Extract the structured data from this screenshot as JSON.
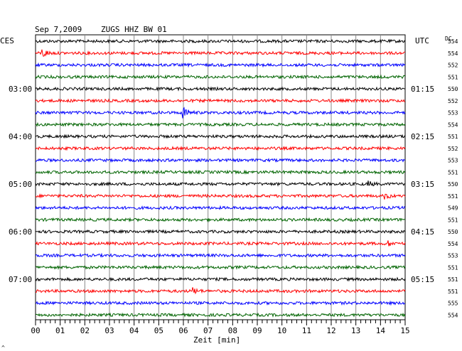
{
  "header": {
    "date": "Sep 7,2009",
    "station": "ZUGS HHZ BW 01"
  },
  "left_zone": "CES",
  "right_zone": "UTC",
  "dc_header": "DC",
  "corner_mark": "^",
  "chart_data": {
    "type": "line",
    "title": "Sep 7,2009  ZUGS HHZ BW 01",
    "xlabel": "Zeit [min]",
    "xlim": [
      0,
      15
    ],
    "x_ticks": [
      "00",
      "01",
      "02",
      "03",
      "04",
      "05",
      "06",
      "07",
      "08",
      "09",
      "10",
      "11",
      "12",
      "13",
      "14",
      "15"
    ],
    "trace_count": 24,
    "trace_colors": [
      "#000000",
      "#ff0000",
      "#0000ff",
      "#006400"
    ],
    "grid": true,
    "left_time_labels": [
      {
        "trace": 4,
        "text": "03:00"
      },
      {
        "trace": 8,
        "text": "04:00"
      },
      {
        "trace": 12,
        "text": "05:00"
      },
      {
        "trace": 16,
        "text": "06:00"
      },
      {
        "trace": 20,
        "text": "07:00"
      }
    ],
    "right_time_labels": [
      {
        "trace": 4,
        "text": "01:15"
      },
      {
        "trace": 8,
        "text": "02:15"
      },
      {
        "trace": 12,
        "text": "03:15"
      },
      {
        "trace": 16,
        "text": "04:15"
      },
      {
        "trace": 20,
        "text": "05:15"
      }
    ],
    "dc_values": [
      "554",
      "554",
      "552",
      "551",
      "550",
      "552",
      "553",
      "554",
      "551",
      "552",
      "553",
      "551",
      "550",
      "551",
      "549",
      "551",
      "550",
      "554",
      "553",
      "551",
      "551",
      "551",
      "555",
      "554"
    ],
    "events": [
      {
        "trace": 1,
        "minute": 0.3,
        "amp": 3.0
      },
      {
        "trace": 6,
        "minute": 6.0,
        "amp": 4.5
      },
      {
        "trace": 12,
        "minute": 13.5,
        "amp": 1.8
      },
      {
        "trace": 13,
        "minute": 14.2,
        "amp": 1.8
      },
      {
        "trace": 17,
        "minute": 14.3,
        "amp": 1.6
      },
      {
        "trace": 21,
        "minute": 6.4,
        "amp": 2.0
      }
    ]
  }
}
